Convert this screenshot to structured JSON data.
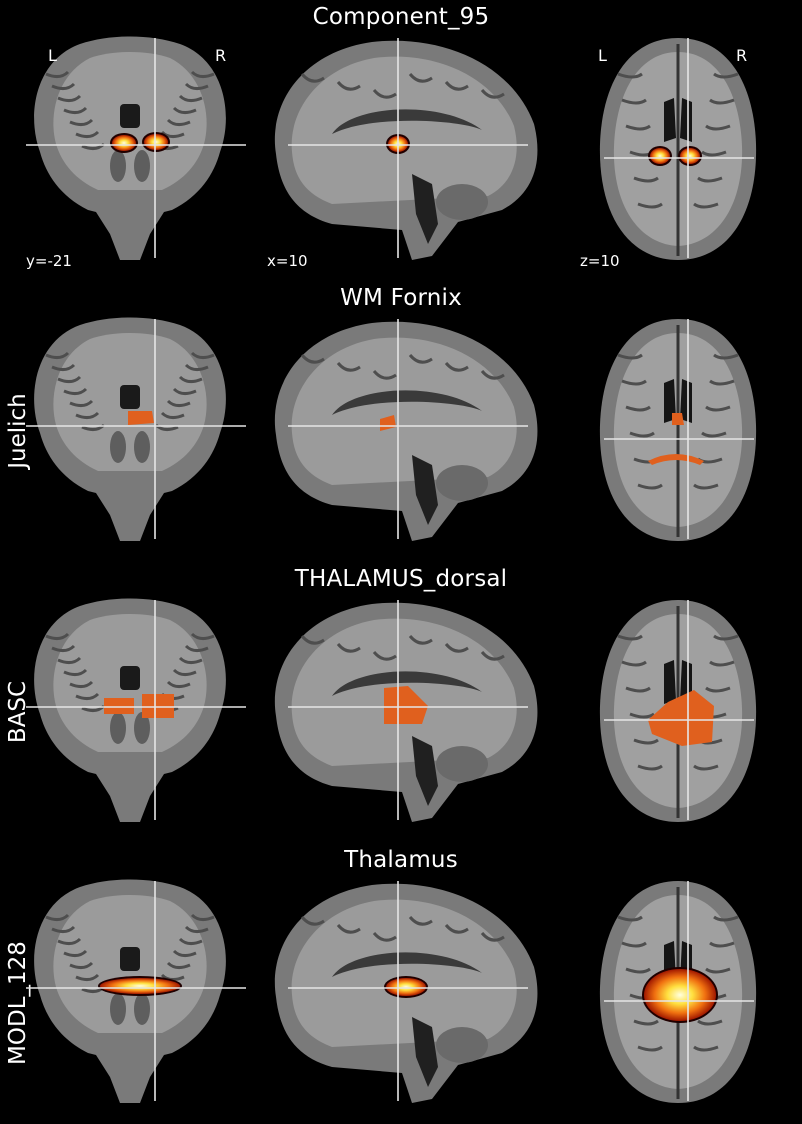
{
  "figure": {
    "orientation_labels": {
      "left": "L",
      "right": "R"
    },
    "coordinates": {
      "coronal": "y=-21",
      "sagittal": "x=10",
      "axial": "z=10"
    },
    "colors": {
      "background": "#000000",
      "crosshair": "#e6e6e6",
      "atlas_overlay": "#e0601e"
    },
    "rows": [
      {
        "title": "Component_95",
        "side_label": ""
      },
      {
        "title": "WM Fornix",
        "side_label": "Juelich"
      },
      {
        "title": "THALAMUS_dorsal",
        "side_label": "BASC"
      },
      {
        "title": "Thalamus",
        "side_label": "MODL_128"
      }
    ]
  }
}
